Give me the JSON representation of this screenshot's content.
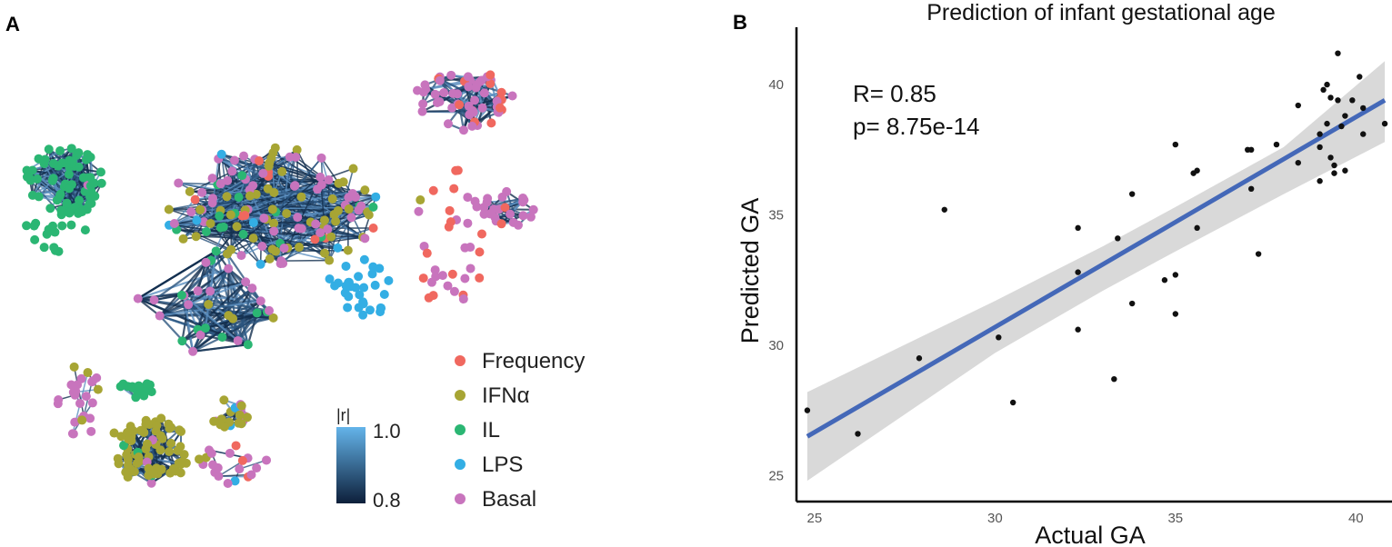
{
  "panel_a": {
    "label": "A",
    "legend": [
      {
        "label": "Frequency",
        "color": "#f0685f"
      },
      {
        "label": "IFNα",
        "color": "#a7a534"
      },
      {
        "label": "IL",
        "color": "#2bb673"
      },
      {
        "label": "LPS",
        "color": "#33aee4"
      },
      {
        "label": "Basal",
        "color": "#c874bd"
      }
    ],
    "colorbar": {
      "title": "|r|",
      "max_label": "1.0",
      "min_label": "0.8",
      "color_high": "#64b4ea",
      "color_low": "#0d1f3a"
    },
    "edge_color": "#27496e"
  },
  "panel_b": {
    "label": "B",
    "chart_data": {
      "type": "scatter",
      "title": "Prediction of infant gestational age",
      "xlabel": "Actual GA",
      "ylabel": "Predicted GA",
      "xlim": [
        24.5,
        41.0
      ],
      "ylim": [
        24.0,
        42.2
      ],
      "xticks": [
        25,
        30,
        35,
        40
      ],
      "yticks": [
        25,
        30,
        35,
        40
      ],
      "annotation": {
        "r": "R= 0.85",
        "p": "p= 8.75e-14"
      },
      "fit_line": {
        "x": [
          24.8,
          40.8
        ],
        "y": [
          26.5,
          39.4
        ],
        "color": "#4468b8"
      },
      "confidence_band": {
        "x": [
          24.8,
          30,
          33,
          35,
          38,
          40.8
        ],
        "lower": [
          24.8,
          29.7,
          32.1,
          33.6,
          35.8,
          37.8
        ],
        "upper": [
          28.2,
          31.7,
          33.8,
          35.3,
          37.6,
          40.9
        ],
        "color": "#d9d9d9"
      },
      "points": [
        [
          24.8,
          27.5
        ],
        [
          26.2,
          26.6
        ],
        [
          27.9,
          29.5
        ],
        [
          28.6,
          35.2
        ],
        [
          30.1,
          30.3
        ],
        [
          30.5,
          27.8
        ],
        [
          32.3,
          34.5
        ],
        [
          32.3,
          32.8
        ],
        [
          32.3,
          30.6
        ],
        [
          33.3,
          28.7
        ],
        [
          33.4,
          34.1
        ],
        [
          33.8,
          35.8
        ],
        [
          33.8,
          31.6
        ],
        [
          34.7,
          32.5
        ],
        [
          35.0,
          37.7
        ],
        [
          35.0,
          32.7
        ],
        [
          35.0,
          31.2
        ],
        [
          35.5,
          36.6
        ],
        [
          35.6,
          36.7
        ],
        [
          35.6,
          34.5
        ],
        [
          37.0,
          37.5
        ],
        [
          37.1,
          37.5
        ],
        [
          37.1,
          36.0
        ],
        [
          37.3,
          33.5
        ],
        [
          37.8,
          37.7
        ],
        [
          38.4,
          39.2
        ],
        [
          38.4,
          37.0
        ],
        [
          39.0,
          36.3
        ],
        [
          39.0,
          37.6
        ],
        [
          39.1,
          39.8
        ],
        [
          39.2,
          40.0
        ],
        [
          39.2,
          38.5
        ],
        [
          39.3,
          39.5
        ],
        [
          39.3,
          37.2
        ],
        [
          39.4,
          36.6
        ],
        [
          39.4,
          36.9
        ],
        [
          39.5,
          41.2
        ],
        [
          39.5,
          39.4
        ],
        [
          39.6,
          38.4
        ],
        [
          39.7,
          36.7
        ],
        [
          39.7,
          38.8
        ],
        [
          39.9,
          39.4
        ],
        [
          40.1,
          40.3
        ],
        [
          40.2,
          39.1
        ],
        [
          40.2,
          38.1
        ],
        [
          40.8,
          38.5
        ],
        [
          39.0,
          38.1
        ]
      ]
    }
  }
}
